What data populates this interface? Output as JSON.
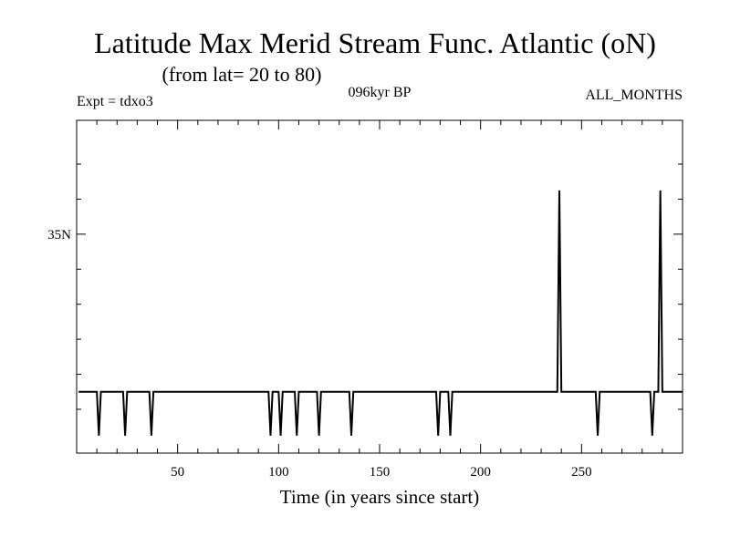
{
  "chart_data": {
    "type": "line",
    "title": "Latitude Max Merid Stream Func. Atlantic (oN)",
    "subtitle": "(from lat= 20 to 80)",
    "experiment_label": "Expt = tdxo3",
    "period_label": "096kyr BP",
    "months_label": "ALL_MONTHS",
    "xlabel": "Time (in years since start)",
    "ylabel": "",
    "xlim": [
      0,
      300
    ],
    "ylim": [
      22.5,
      41.5
    ],
    "x_ticks": [
      {
        "value": 50,
        "label": "50"
      },
      {
        "value": 100,
        "label": "100"
      },
      {
        "value": 150,
        "label": "150"
      },
      {
        "value": 200,
        "label": "200"
      },
      {
        "value": 250,
        "label": "250"
      }
    ],
    "x_minor_ticks": [
      10,
      20,
      30,
      40,
      60,
      70,
      80,
      90,
      110,
      120,
      130,
      140,
      160,
      170,
      180,
      190,
      210,
      220,
      230,
      240,
      260,
      270,
      280,
      290
    ],
    "y_ticks": [
      {
        "value": 35,
        "label": "35N"
      }
    ],
    "y_minor_ticks": [
      25,
      27,
      29,
      31,
      33,
      37,
      39
    ],
    "grid": false,
    "series": [
      {
        "x": [
          1,
          10,
          11,
          12,
          23,
          24,
          25,
          36,
          37,
          38,
          95,
          96,
          97,
          100,
          101,
          102,
          108,
          109,
          110,
          119,
          120,
          121,
          135,
          136,
          137,
          178,
          179,
          180,
          184,
          185,
          186,
          238,
          239,
          240,
          241,
          257,
          258,
          259,
          284,
          285,
          286,
          288,
          289,
          290,
          300
        ],
        "y": [
          26,
          26,
          23.5,
          26,
          26,
          23.5,
          26,
          26,
          23.5,
          26,
          26,
          23.5,
          26,
          26,
          23.5,
          26,
          26,
          23.5,
          26,
          26,
          23.5,
          26,
          26,
          23.5,
          26,
          26,
          23.5,
          26,
          26,
          23.5,
          26,
          26,
          37.5,
          26,
          26,
          26,
          23.5,
          26,
          26,
          23.5,
          26,
          26,
          37.5,
          26,
          26
        ]
      }
    ]
  }
}
